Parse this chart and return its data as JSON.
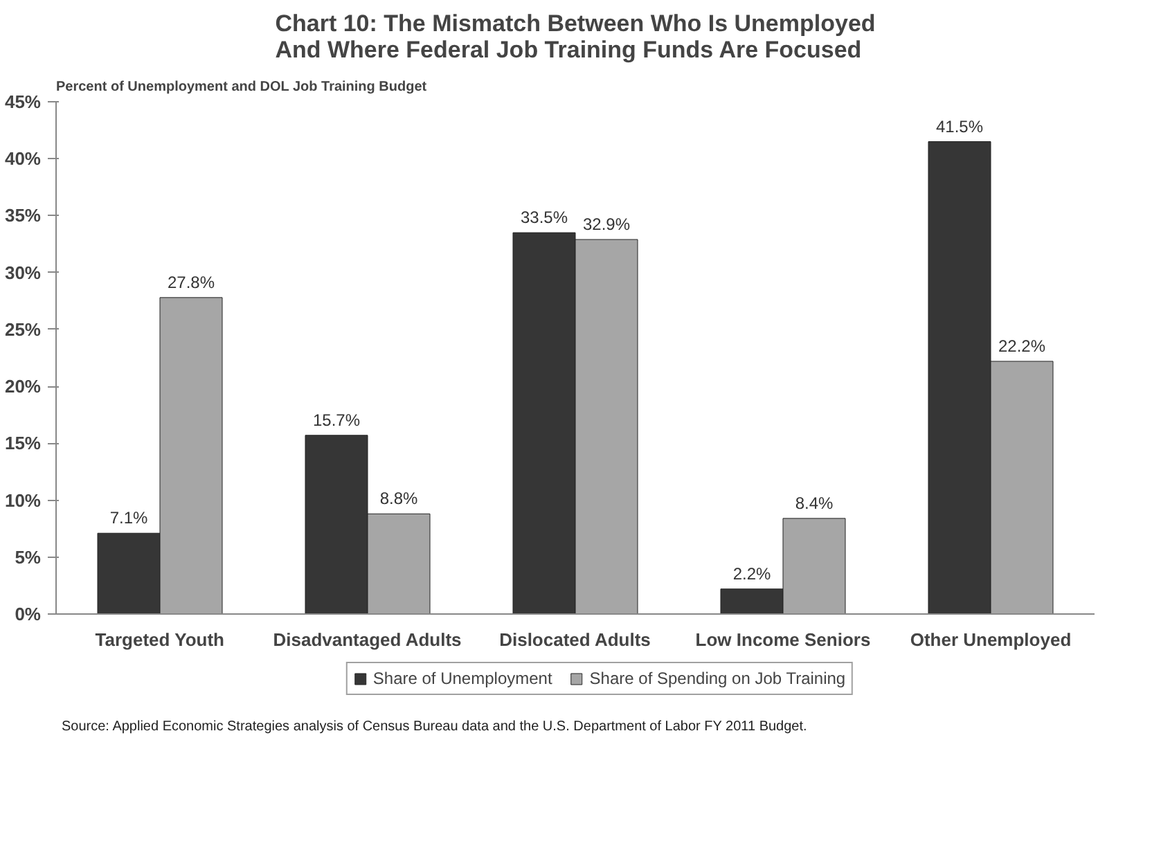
{
  "chart_data": {
    "type": "bar",
    "title": "Chart 10: The Mismatch Between Who Is Unemployed\nAnd Where Federal Job Training Funds Are Focused",
    "ylabel": "Percent of Unemployment and DOL Job Training Budget",
    "categories": [
      "Targeted Youth",
      "Disadvantaged Adults",
      "Dislocated Adults",
      "Low Income Seniors",
      "Other Unemployed"
    ],
    "series": [
      {
        "name": "Share of Unemployment",
        "color": "#363636",
        "values": [
          7.1,
          15.7,
          33.5,
          2.2,
          41.5
        ],
        "value_labels": [
          "7.1%",
          "15.7%",
          "33.5%",
          "2.2%",
          "41.5%"
        ]
      },
      {
        "name": "Share of Spending on Job Training",
        "color": "#a6a6a6",
        "values": [
          27.8,
          8.8,
          32.9,
          8.4,
          22.2
        ],
        "value_labels": [
          "27.8%",
          "8.8%",
          "32.9%",
          "8.4%",
          "22.2%"
        ]
      }
    ],
    "ylim": [
      0,
      45
    ],
    "yticks": [
      {
        "value": 0,
        "label": "0%"
      },
      {
        "value": 5,
        "label": "5%"
      },
      {
        "value": 10,
        "label": "10%"
      },
      {
        "value": 15,
        "label": "15%"
      },
      {
        "value": 20,
        "label": "20%"
      },
      {
        "value": 25,
        "label": "25%"
      },
      {
        "value": 30,
        "label": "30%"
      },
      {
        "value": 35,
        "label": "35%"
      },
      {
        "value": 40,
        "label": "40%"
      },
      {
        "value": 45,
        "label": "45%"
      }
    ],
    "grid": false,
    "legend": "bottom",
    "annotations": [
      "Source: Applied Economic Strategies analysis of Census Bureau data and the U.S. Department of Labor FY 2011 Budget."
    ]
  }
}
